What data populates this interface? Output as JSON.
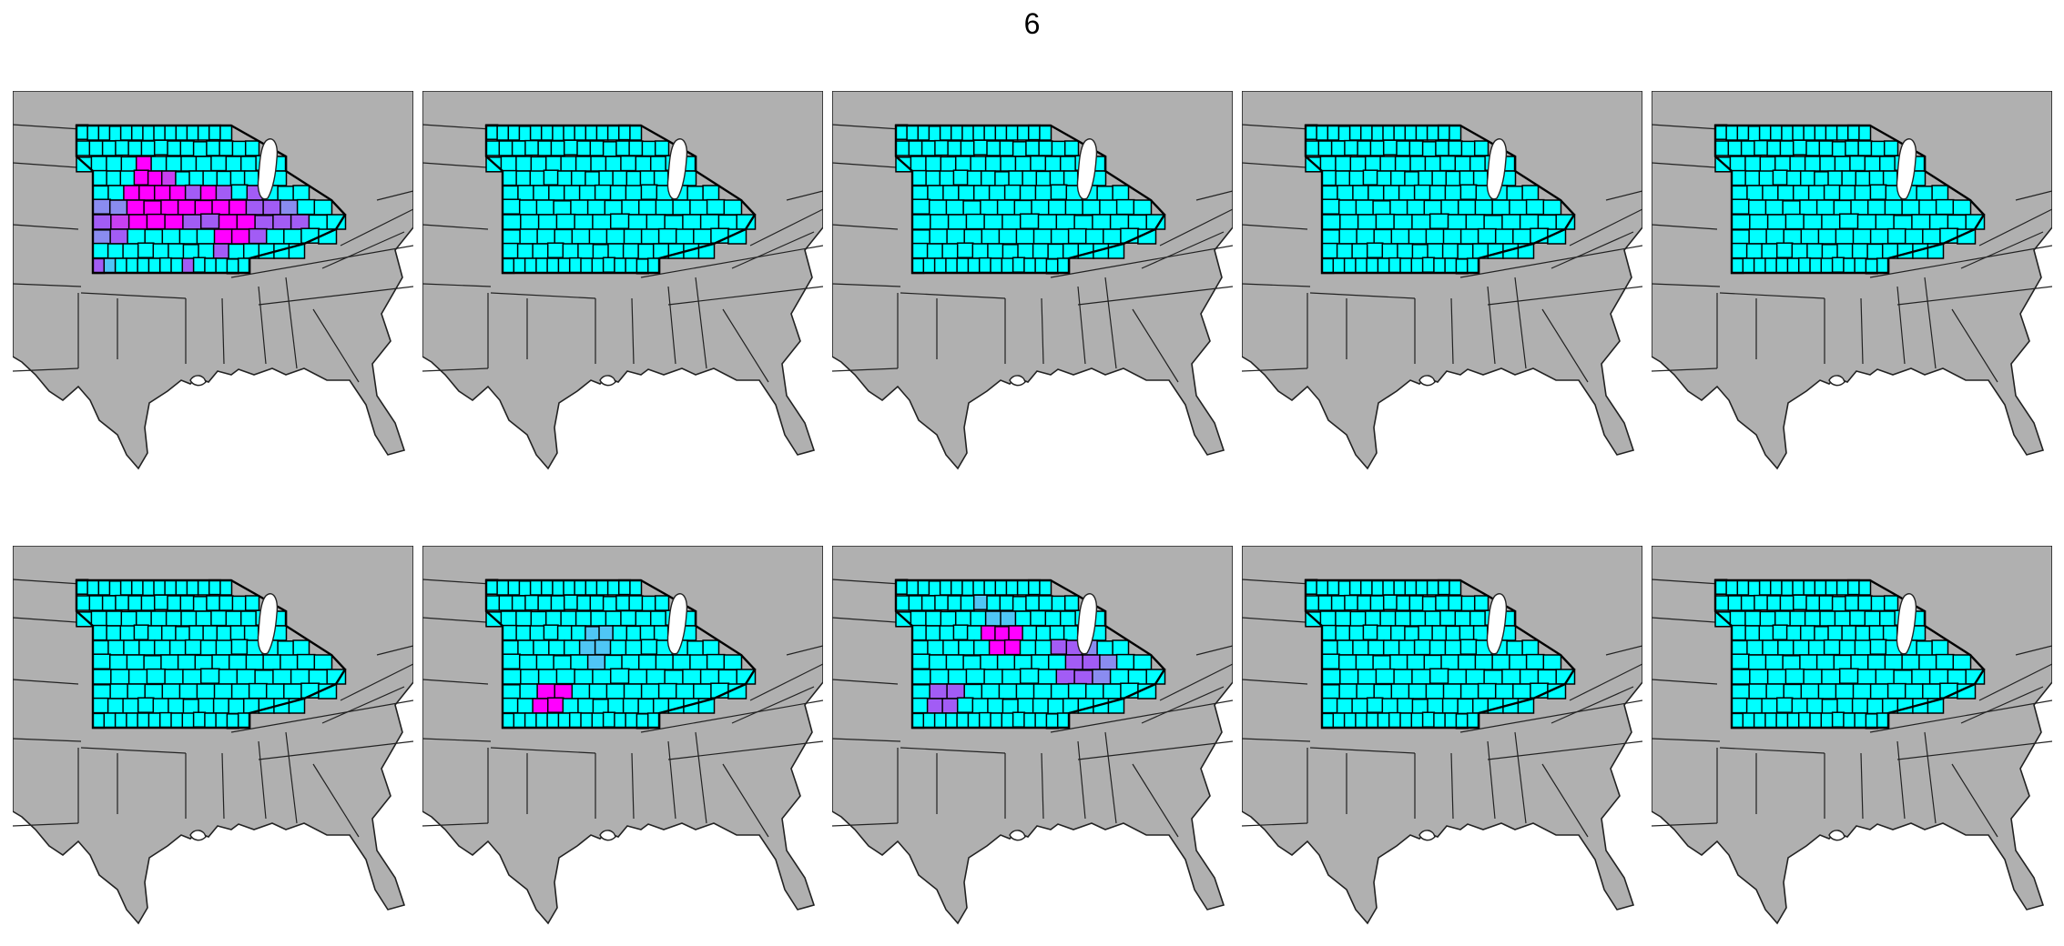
{
  "title": "6",
  "legend_colors": {
    "base": "#00ffff",
    "light_blue": "#4fc6f5",
    "periwinkle": "#8a8cf0",
    "purple": "#a25cf5",
    "violet": "#c840f0",
    "magenta": "#ff00ff",
    "land": "#b0b0b0"
  },
  "panels": [
    {
      "name": "panel-1",
      "highlights": [
        {
          "row": 2,
          "col": 4,
          "color": "magenta"
        },
        {
          "row": 3,
          "col": 3,
          "color": "magenta"
        },
        {
          "row": 3,
          "col": 4,
          "color": "magenta"
        },
        {
          "row": 3,
          "col": 5,
          "color": "violet"
        },
        {
          "row": 4,
          "col": 2,
          "color": "magenta"
        },
        {
          "row": 4,
          "col": 3,
          "color": "magenta"
        },
        {
          "row": 4,
          "col": 4,
          "color": "magenta"
        },
        {
          "row": 4,
          "col": 5,
          "color": "magenta"
        },
        {
          "row": 4,
          "col": 6,
          "color": "purple"
        },
        {
          "row": 4,
          "col": 7,
          "color": "magenta"
        },
        {
          "row": 4,
          "col": 8,
          "color": "purple"
        },
        {
          "row": 4,
          "col": 10,
          "color": "purple"
        },
        {
          "row": 5,
          "col": 0,
          "color": "periwinkle"
        },
        {
          "row": 5,
          "col": 1,
          "color": "periwinkle"
        },
        {
          "row": 5,
          "col": 2,
          "color": "magenta"
        },
        {
          "row": 5,
          "col": 3,
          "color": "magenta"
        },
        {
          "row": 5,
          "col": 4,
          "color": "magenta"
        },
        {
          "row": 5,
          "col": 5,
          "color": "magenta"
        },
        {
          "row": 5,
          "col": 6,
          "color": "magenta"
        },
        {
          "row": 5,
          "col": 7,
          "color": "magenta"
        },
        {
          "row": 5,
          "col": 8,
          "color": "magenta"
        },
        {
          "row": 5,
          "col": 9,
          "color": "purple"
        },
        {
          "row": 5,
          "col": 10,
          "color": "purple"
        },
        {
          "row": 5,
          "col": 11,
          "color": "periwinkle"
        },
        {
          "row": 6,
          "col": 0,
          "color": "purple"
        },
        {
          "row": 6,
          "col": 1,
          "color": "violet"
        },
        {
          "row": 6,
          "col": 2,
          "color": "magenta"
        },
        {
          "row": 6,
          "col": 3,
          "color": "magenta"
        },
        {
          "row": 6,
          "col": 4,
          "color": "magenta"
        },
        {
          "row": 6,
          "col": 5,
          "color": "purple"
        },
        {
          "row": 6,
          "col": 6,
          "color": "purple"
        },
        {
          "row": 6,
          "col": 7,
          "color": "magenta"
        },
        {
          "row": 6,
          "col": 8,
          "color": "magenta"
        },
        {
          "row": 6,
          "col": 9,
          "color": "purple"
        },
        {
          "row": 6,
          "col": 10,
          "color": "purple"
        },
        {
          "row": 6,
          "col": 11,
          "color": "purple"
        },
        {
          "row": 7,
          "col": 0,
          "color": "periwinkle"
        },
        {
          "row": 7,
          "col": 1,
          "color": "purple"
        },
        {
          "row": 7,
          "col": 7,
          "color": "magenta"
        },
        {
          "row": 7,
          "col": 8,
          "color": "magenta"
        },
        {
          "row": 7,
          "col": 9,
          "color": "purple"
        },
        {
          "row": 8,
          "col": 8,
          "color": "purple"
        },
        {
          "row": 9,
          "col": 0,
          "color": "purple"
        },
        {
          "row": 9,
          "col": 1,
          "color": "light_blue"
        },
        {
          "row": 9,
          "col": 8,
          "color": "purple"
        }
      ]
    },
    {
      "name": "panel-2",
      "highlights": []
    },
    {
      "name": "panel-3",
      "highlights": []
    },
    {
      "name": "panel-4",
      "highlights": []
    },
    {
      "name": "panel-5",
      "highlights": []
    },
    {
      "name": "panel-6",
      "highlights": []
    },
    {
      "name": "panel-7",
      "highlights": [
        {
          "row": 3,
          "col": 6,
          "color": "light_blue"
        },
        {
          "row": 3,
          "col": 7,
          "color": "light_blue"
        },
        {
          "row": 4,
          "col": 5,
          "color": "light_blue"
        },
        {
          "row": 4,
          "col": 6,
          "color": "light_blue"
        },
        {
          "row": 5,
          "col": 5,
          "color": "light_blue"
        },
        {
          "row": 7,
          "col": 2,
          "color": "magenta"
        },
        {
          "row": 7,
          "col": 3,
          "color": "magenta"
        },
        {
          "row": 8,
          "col": 2,
          "color": "magenta"
        },
        {
          "row": 8,
          "col": 3,
          "color": "magenta"
        }
      ]
    },
    {
      "name": "panel-8",
      "highlights": [
        {
          "row": 1,
          "col": 6,
          "color": "light_blue"
        },
        {
          "row": 2,
          "col": 6,
          "color": "light_blue"
        },
        {
          "row": 2,
          "col": 7,
          "color": "light_blue"
        },
        {
          "row": 3,
          "col": 5,
          "color": "magenta"
        },
        {
          "row": 3,
          "col": 6,
          "color": "magenta"
        },
        {
          "row": 3,
          "col": 7,
          "color": "magenta"
        },
        {
          "row": 4,
          "col": 5,
          "color": "magenta"
        },
        {
          "row": 4,
          "col": 6,
          "color": "magenta"
        },
        {
          "row": 4,
          "col": 9,
          "color": "purple"
        },
        {
          "row": 4,
          "col": 10,
          "color": "purple"
        },
        {
          "row": 4,
          "col": 11,
          "color": "periwinkle"
        },
        {
          "row": 5,
          "col": 9,
          "color": "purple"
        },
        {
          "row": 5,
          "col": 10,
          "color": "purple"
        },
        {
          "row": 5,
          "col": 11,
          "color": "periwinkle"
        },
        {
          "row": 6,
          "col": 8,
          "color": "purple"
        },
        {
          "row": 6,
          "col": 9,
          "color": "purple"
        },
        {
          "row": 6,
          "col": 10,
          "color": "periwinkle"
        },
        {
          "row": 7,
          "col": 1,
          "color": "purple"
        },
        {
          "row": 7,
          "col": 2,
          "color": "purple"
        },
        {
          "row": 8,
          "col": 1,
          "color": "purple"
        },
        {
          "row": 8,
          "col": 2,
          "color": "purple"
        }
      ]
    },
    {
      "name": "panel-9",
      "highlights": []
    },
    {
      "name": "panel-10",
      "highlights": []
    }
  ]
}
